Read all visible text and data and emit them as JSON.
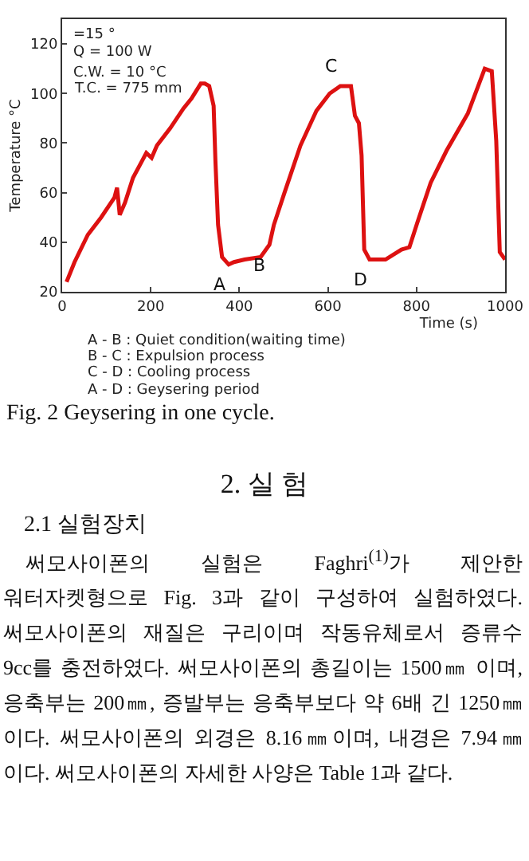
{
  "chart_data": {
    "type": "line",
    "xlabel": "Time (s)",
    "ylabel": "Temperature °C",
    "x": [
      10,
      28,
      58,
      88,
      118,
      124,
      130,
      142,
      160,
      178,
      190,
      202,
      214,
      244,
      274,
      292,
      313,
      322,
      332,
      342,
      346,
      352,
      361,
      376,
      388,
      412,
      448,
      468,
      478,
      502,
      538,
      574,
      604,
      628,
      652,
      661,
      670,
      676,
      682,
      694,
      730,
      766,
      784,
      802,
      832,
      868,
      916,
      954,
      970,
      980,
      988,
      1000
    ],
    "series": [
      {
        "color": "#dd1111",
        "values": [
          24,
          32,
          43,
          50,
          58,
          62,
          51,
          56,
          66,
          72,
          76,
          74,
          79,
          86,
          94,
          98,
          104,
          104,
          103,
          95,
          73,
          47,
          34,
          31,
          32,
          33,
          34,
          39,
          47,
          60,
          79,
          93,
          100,
          103,
          103,
          91,
          88,
          75,
          37,
          33,
          33,
          37,
          38,
          48,
          64,
          77,
          92,
          110,
          109,
          81,
          36,
          33
        ]
      }
    ],
    "xlim": [
      0,
      1000
    ],
    "xticks": [
      0,
      200,
      400,
      600,
      800,
      1000
    ],
    "ylim": [
      20,
      130
    ],
    "yticks": [
      20,
      40,
      60,
      80,
      100,
      120
    ],
    "grid": false,
    "marker": "none",
    "line_style": "solid",
    "annotations": [
      "=15 °",
      "Q = 100 W",
      "C.W. = 10 °C",
      "T.C. = 775 mm",
      {
        "text": "A",
        "x": 376,
        "y": 31
      },
      {
        "text": "B",
        "x": 468,
        "y": 39
      },
      {
        "text": "C",
        "x": 628,
        "y": 103
      },
      {
        "text": "D",
        "x": 694,
        "y": 33
      },
      "A - B : Quiet condition(waiting time)",
      "B - C : Expulsion process",
      "C - D : Cooling process",
      "A - D : Geysering period",
      "Fig. 2 Geysering in one cycle.",
      "2. 실 험",
      "2.1 실험장치",
      "써모사이폰의 실험은 Faghri$^{(1)}$가 제안한 워터자켓형으로 Fig. 3과 같이 구성하여 실험하였다. 써모사이폰의 재질은 구리이며 작동유체로서 증류수 9cc를 충전하였다. 써모사이폰의 총길이는 1500㎜ 이며, 응축부는 200㎜, 증발부는 응축부보다 약 6배 긴 1250㎜이다. 써모사이폰의 외경은 8.16㎜이며, 내경은 7.94㎜이다. 써모사이폰의 자세한 사양은 Table 1과 같다."
    ]
  }
}
